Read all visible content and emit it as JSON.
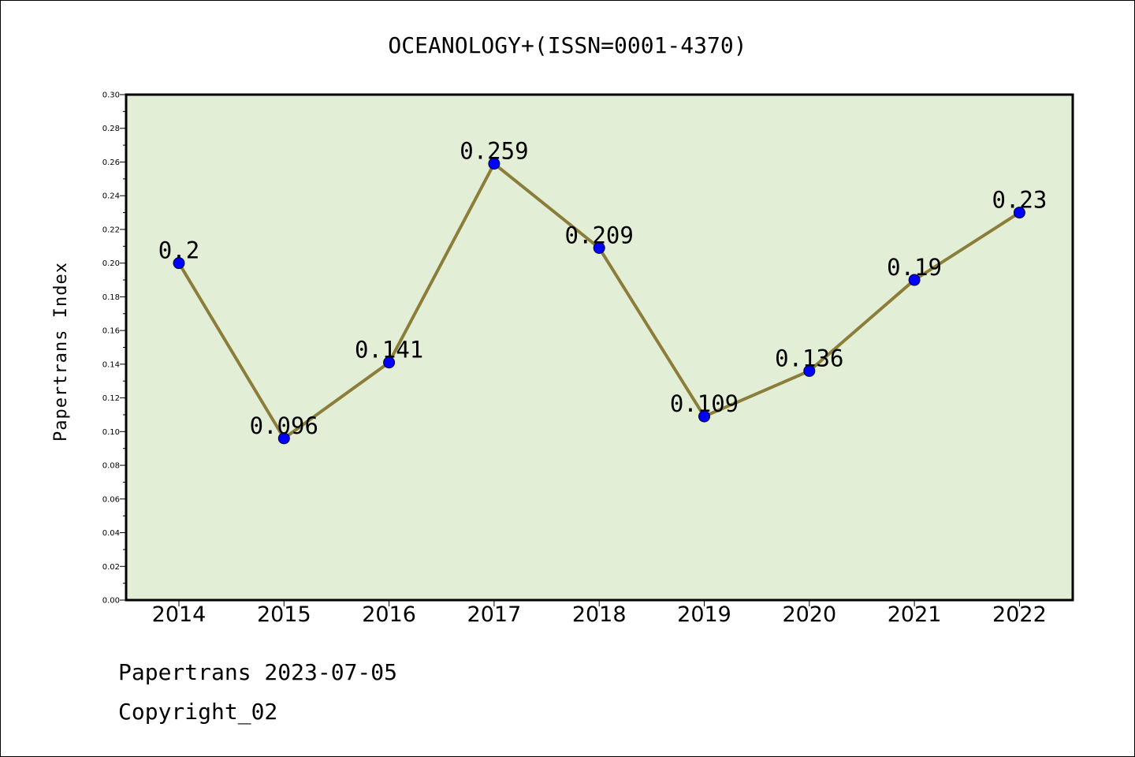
{
  "chart_data": {
    "type": "line",
    "title": "OCEANOLOGY+(ISSN=0001-4370)",
    "xlabel": "",
    "ylabel": "Papertrans Index",
    "categories": [
      "2014",
      "2015",
      "2016",
      "2017",
      "2018",
      "2019",
      "2020",
      "2021",
      "2022"
    ],
    "values": [
      0.2,
      0.096,
      0.141,
      0.259,
      0.209,
      0.109,
      0.136,
      0.19,
      0.23
    ],
    "data_labels": [
      "0.2",
      "0.096",
      "0.141",
      "0.259",
      "0.209",
      "0.109",
      "0.136",
      "0.19",
      "0.23"
    ],
    "ylim": [
      0,
      0.3
    ],
    "yticks": [
      "0.00",
      "0.02",
      "0.04",
      "0.06",
      "0.08",
      "0.10",
      "0.12",
      "0.14",
      "0.16",
      "0.18",
      "0.20",
      "0.22",
      "0.24",
      "0.26",
      "0.28",
      "0.30"
    ],
    "grid": false,
    "legend": "none",
    "colors": {
      "plot_background": "#e2efd6",
      "line": "#8b7d3a",
      "marker": "#0000ff"
    }
  },
  "footer": {
    "line1": "Papertrans 2023-07-05",
    "line2": "Copyright_02"
  }
}
